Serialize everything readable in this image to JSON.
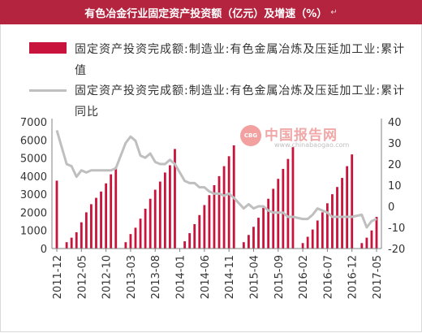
{
  "header": {
    "title": "有色冶金行业固定资产投资额（亿元）及增速（%）",
    "mark": "↵"
  },
  "watermark": {
    "logo_text": "CBG",
    "name": "中国报告网",
    "url": "www.chinabaogao.com"
  },
  "colors": {
    "bar": "#c8143c",
    "line": "#bfbfbf",
    "title_bg": "#b5243f"
  },
  "chart_data": {
    "type": "bar",
    "title": "",
    "legend_placement": "top",
    "grid": false,
    "x_tick_labels": [
      "2011-12",
      "2012-05",
      "2012-10",
      "2013-03",
      "2013-08",
      "2014-01",
      "2014-06",
      "2014-11",
      "2015-04",
      "2015-09",
      "2016-02",
      "2016-07",
      "2016-12",
      "2017-05"
    ],
    "ylim_left": [
      0,
      7000
    ],
    "ylim_right": [
      -20,
      40
    ],
    "yticks_left": [
      "7000",
      "6000",
      "5000",
      "4000",
      "3000",
      "2000",
      "1000",
      "0"
    ],
    "yticks_right": [
      "40",
      "30",
      "20",
      "10",
      "0",
      "-10",
      "-20"
    ],
    "x": [
      "2011-12",
      "2012-02",
      "2012-03",
      "2012-04",
      "2012-05",
      "2012-06",
      "2012-07",
      "2012-08",
      "2012-09",
      "2012-10",
      "2012-11",
      "2012-12",
      "2013-02",
      "2013-03",
      "2013-04",
      "2013-05",
      "2013-06",
      "2013-07",
      "2013-08",
      "2013-09",
      "2013-10",
      "2013-11",
      "2013-12",
      "2014-02",
      "2014-03",
      "2014-04",
      "2014-05",
      "2014-06",
      "2014-07",
      "2014-08",
      "2014-09",
      "2014-10",
      "2014-11",
      "2014-12",
      "2015-02",
      "2015-03",
      "2015-04",
      "2015-05",
      "2015-06",
      "2015-07",
      "2015-08",
      "2015-09",
      "2015-10",
      "2015-11",
      "2015-12",
      "2016-02",
      "2016-03",
      "2016-04",
      "2016-05",
      "2016-06",
      "2016-07",
      "2016-08",
      "2016-09",
      "2016-10",
      "2016-11",
      "2016-12",
      "2017-02",
      "2017-03",
      "2017-04",
      "2017-05"
    ],
    "series": [
      {
        "name": "固定资产投资完成额:制造业:有色金属冶炼及压延加工业:累计值",
        "type": "bar",
        "axis": "left",
        "values": [
          3750,
          350,
          600,
          900,
          1450,
          2000,
          2450,
          2800,
          3150,
          3600,
          4100,
          4500,
          350,
          800,
          1150,
          1650,
          2200,
          2750,
          3250,
          3700,
          4200,
          4600,
          5500,
          400,
          850,
          1350,
          1850,
          2400,
          2950,
          3500,
          4000,
          4550,
          5100,
          5700,
          350,
          750,
          1200,
          1700,
          2250,
          2750,
          3300,
          3850,
          4400,
          4950,
          5600,
          300,
          650,
          1050,
          1550,
          2000,
          2500,
          3000,
          3400,
          3900,
          4550,
          5200,
          300,
          600,
          1000,
          1750
        ]
      },
      {
        "name": "固定资产投资完成额:制造业:有色金属冶炼及压延加工业:累计同比",
        "type": "line",
        "axis": "right",
        "values": [
          36,
          20,
          19,
          14,
          17,
          16,
          17,
          17,
          17,
          17,
          17,
          18,
          30,
          33,
          31,
          24,
          23,
          25,
          21,
          20,
          20,
          22,
          20,
          12,
          11,
          11,
          9,
          9,
          7,
          6,
          6,
          5,
          6,
          4,
          -1,
          1,
          -1,
          0,
          0,
          -2,
          -3,
          -3,
          -3,
          -5,
          -5,
          -6,
          -6,
          -4,
          -1,
          -2,
          -3,
          -5,
          -5,
          -5,
          -5,
          -5,
          -4,
          -10,
          -7,
          -6
        ]
      }
    ]
  }
}
